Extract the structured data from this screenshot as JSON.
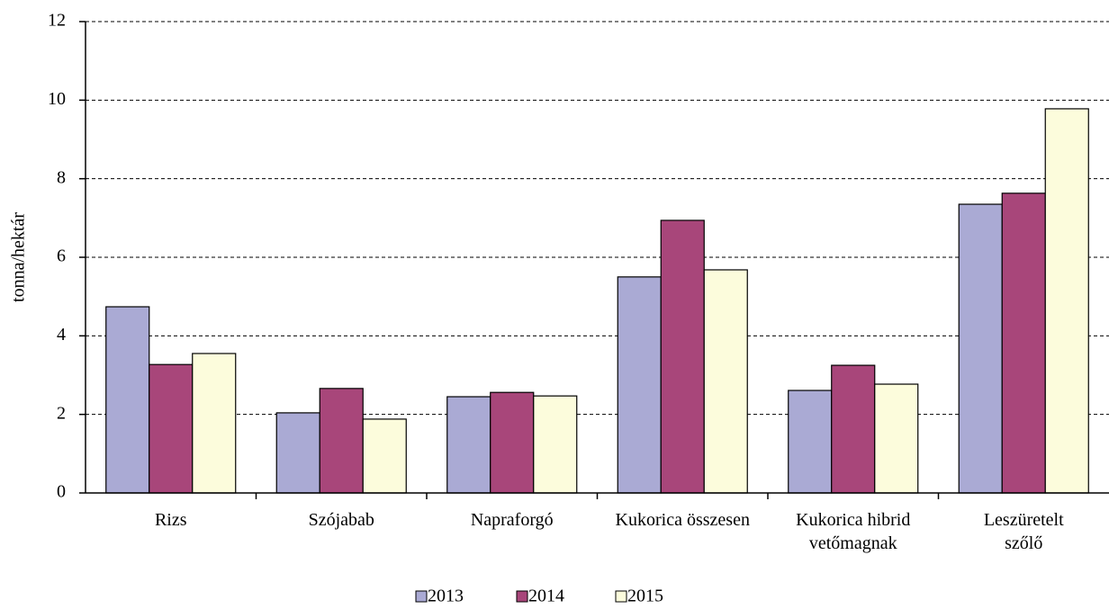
{
  "chart_data": {
    "type": "bar",
    "y_label": "tonna/hektár",
    "categories": [
      "Rizs",
      "Szójabab",
      "Napraforgó",
      "Kukorica összesen",
      "Kukorica hibrid\nvetőmagnak",
      "Leszüretelt\nszőlő"
    ],
    "series": [
      {
        "name": "2013",
        "color": "#aaaad4",
        "values": [
          4.74,
          2.04,
          2.45,
          5.5,
          2.61,
          7.35
        ]
      },
      {
        "name": "2014",
        "color": "#a8467a",
        "values": [
          3.27,
          2.66,
          2.56,
          6.94,
          3.25,
          7.63
        ]
      },
      {
        "name": "2015",
        "color": "#fcfcdc",
        "values": [
          3.55,
          1.88,
          2.47,
          5.68,
          2.77,
          9.78
        ]
      }
    ],
    "ylim": [
      0,
      12
    ],
    "yticks": [
      0,
      2,
      4,
      6,
      8,
      10,
      12
    ],
    "grid": true
  }
}
